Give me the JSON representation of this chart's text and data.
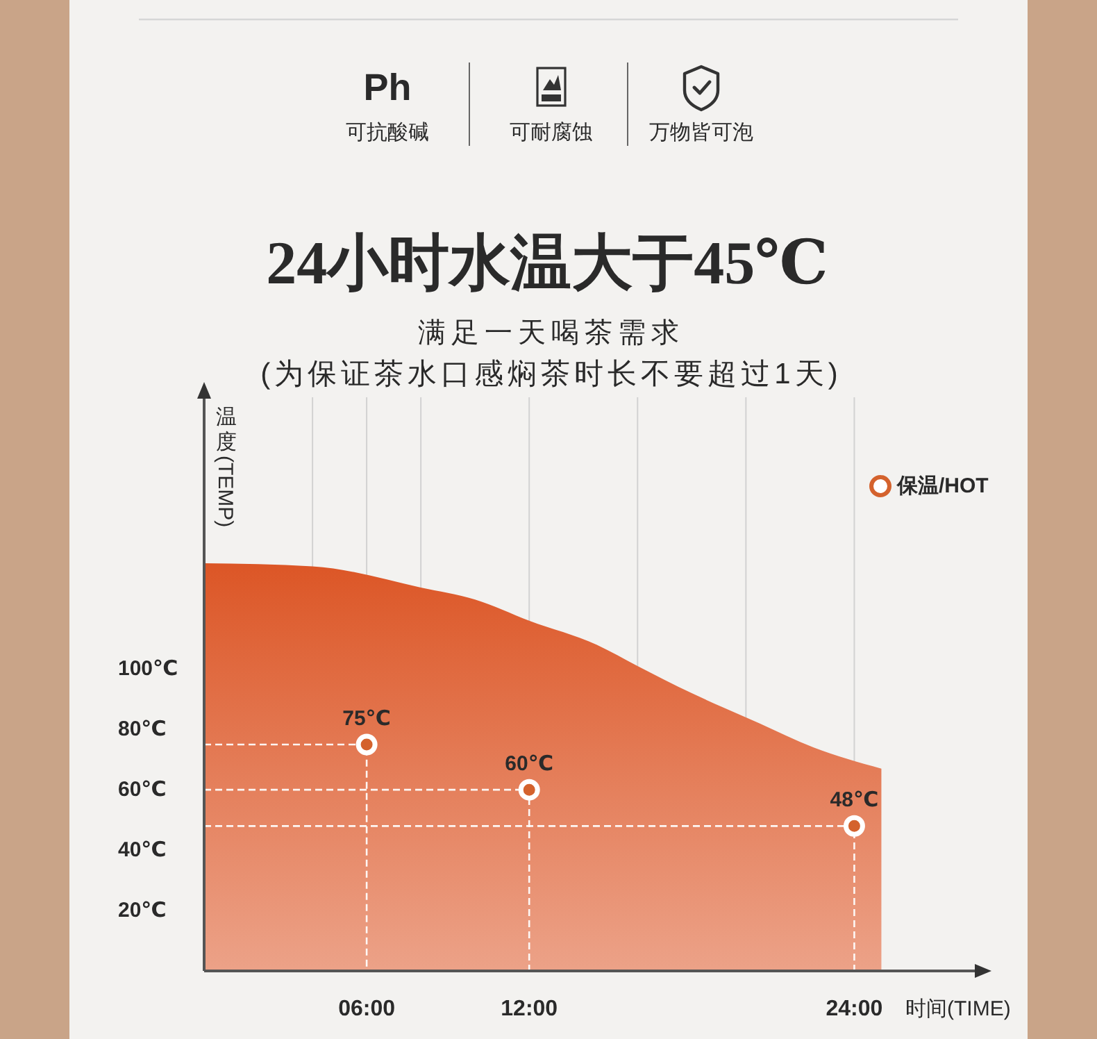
{
  "chart_data": {
    "type": "area",
    "title": "24小时水温大于45℃",
    "subtitle": "满足一天喝茶需求\n(为保证茶水口感焖茶时长不要超过1天)",
    "xlabel": "时间(TIME)",
    "ylabel": "温度(TEMP)",
    "annotations": [
      "Ph",
      "可抗酸碱",
      "可耐腐蚀",
      "万物皆可泡"
    ],
    "xlim": [
      0,
      28.5
    ],
    "xticks": [
      {
        "value": 4,
        "label": null
      },
      {
        "value": 6,
        "label": "06:00"
      },
      {
        "value": 8,
        "label": null
      },
      {
        "value": 12,
        "label": "12:00"
      },
      {
        "value": 16,
        "label": null
      },
      {
        "value": 20,
        "label": null
      },
      {
        "value": 24,
        "label": "24:00"
      }
    ],
    "ylim": [
      0,
      190
    ],
    "yticks": [
      {
        "value": 20,
        "label": "20℃"
      },
      {
        "value": 40,
        "label": "40℃"
      },
      {
        "value": 60,
        "label": "60℃"
      },
      {
        "value": 80,
        "label": "80℃"
      },
      {
        "value": 100,
        "label": "100℃"
      }
    ],
    "grid": "x",
    "legend": "top right",
    "series": [
      {
        "color": "#dc5626",
        "x": [
          0,
          4,
          8,
          10,
          12,
          14.5,
          16,
          18,
          20.5,
          22.5,
          25
        ],
        "values": [
          135,
          134,
          127,
          123,
          116,
          108,
          101,
          92,
          82,
          74,
          67
        ]
      },
      {
        "type": "line",
        "color": "#ffffff",
        "line_style": "dashed",
        "x": [
          0,
          6,
          6
        ],
        "values": [
          75,
          75,
          0
        ]
      },
      {
        "type": "line",
        "color": "#ffffff",
        "line_style": "dashed",
        "x": [
          0,
          12,
          12
        ],
        "values": [
          60,
          60,
          0
        ]
      },
      {
        "type": "line",
        "color": "#ffffff",
        "line_style": "dashed",
        "x": [
          0,
          24,
          24
        ],
        "values": [
          48,
          48,
          0
        ]
      },
      {
        "type": "scatter",
        "name": "保温/HOT",
        "color": "#d4622d",
        "marker": "circle",
        "x": [
          6,
          12,
          24
        ],
        "values": [
          75,
          60,
          48
        ],
        "value_labels": [
          "75℃",
          "60℃",
          "48℃"
        ]
      }
    ]
  }
}
